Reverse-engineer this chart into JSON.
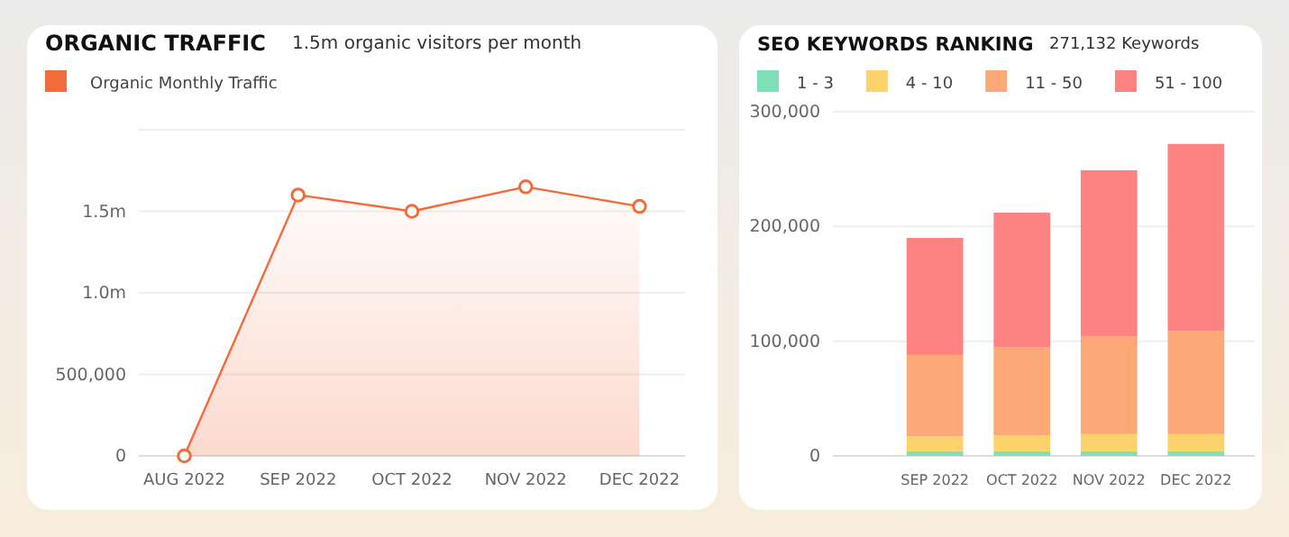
{
  "chart_data": [
    {
      "type": "area",
      "title": "ORGANIC TRAFFIC",
      "subtitle": "1.5m organic visitors per month",
      "categories": [
        "AUG 2022",
        "SEP 2022",
        "OCT 2022",
        "NOV 2022",
        "DEC 2022"
      ],
      "series": [
        {
          "name": "Organic Monthly Traffic",
          "color": "#f26b3a",
          "values": [
            0,
            1600000,
            1500000,
            1650000,
            1530000
          ]
        }
      ],
      "ylim": [
        0,
        2000000
      ],
      "yticks": [
        0,
        {
          "value": 500000,
          "label": "500,000"
        },
        {
          "value": 1000000,
          "label": "1.0m"
        },
        {
          "value": 1500000,
          "label": "1.5m"
        },
        {
          "value": 2000000,
          "label": null
        }
      ],
      "grid": "y",
      "legend": "top left",
      "marker": "circle"
    },
    {
      "type": "bar",
      "title": "SEO KEYWORDS RANKING",
      "subtitle": "271,132 Keywords",
      "categories": [
        "SEP 2022",
        "OCT 2022",
        "NOV 2022",
        "DEC 2022"
      ],
      "stacked": true,
      "series": [
        {
          "name": "1 - 3",
          "color": "#7ee0b8",
          "values": [
            4000,
            4000,
            4000,
            4000
          ]
        },
        {
          "name": "4 - 10",
          "color": "#fcd36a",
          "values": [
            13000,
            14000,
            15000,
            15000
          ]
        },
        {
          "name": "11 - 50",
          "color": "#fda877",
          "values": [
            71000,
            77000,
            85000,
            90000
          ]
        },
        {
          "name": "51 - 100",
          "color": "#fd8282",
          "values": [
            102000,
            117000,
            145000,
            163000
          ]
        }
      ],
      "ylim": [
        0,
        300000
      ],
      "yticks": [
        {
          "value": 0,
          "label": "0"
        },
        {
          "value": 100000,
          "label": "100,000"
        },
        {
          "value": 200000,
          "label": "200,000"
        },
        {
          "value": 300000,
          "label": "300,000"
        }
      ],
      "grid": "y",
      "legend": "top"
    }
  ]
}
